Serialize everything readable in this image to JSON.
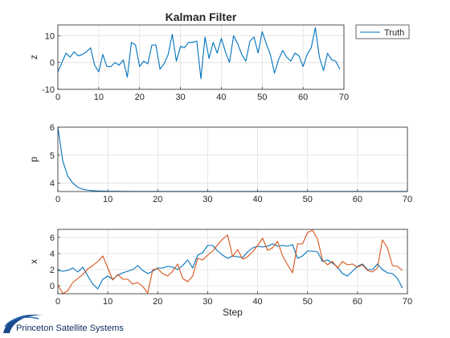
{
  "chart_data": [
    {
      "type": "line",
      "title": "Kalman Filter",
      "xlabel": "",
      "ylabel": "z",
      "xlim": [
        0,
        70
      ],
      "ylim": [
        -10,
        14
      ],
      "xticks": [
        "0",
        "10",
        "20",
        "30",
        "40",
        "50",
        "60",
        "70"
      ],
      "yticks": [
        "-10",
        "0",
        "10"
      ],
      "grid": true,
      "legend": "top-right-outside",
      "series": [
        {
          "name": "Truth",
          "color": "#0072BD",
          "x": [
            0,
            1,
            2,
            3,
            4,
            5,
            6,
            7,
            8,
            9,
            10,
            11,
            12,
            13,
            14,
            15,
            16,
            17,
            18,
            19,
            20,
            21,
            22,
            23,
            24,
            25,
            26,
            27,
            28,
            29,
            30,
            31,
            32,
            33,
            34,
            35,
            36,
            37,
            38,
            39,
            40,
            41,
            42,
            43,
            44,
            45,
            46,
            47,
            48,
            49,
            50,
            51,
            52,
            53,
            54,
            55,
            56,
            57,
            58,
            59,
            60,
            61,
            62,
            63,
            64,
            65,
            66,
            67,
            68,
            69
          ],
          "y": [
            -3.5,
            0,
            3.5,
            2,
            4,
            2.5,
            3,
            4,
            5.5,
            -1,
            -3.5,
            3,
            -1.5,
            -1.5,
            0,
            -1,
            1,
            -5.5,
            7.5,
            6.5,
            -1.5,
            0.5,
            -0.5,
            6.5,
            6.5,
            -2.5,
            -0.5,
            3,
            10.5,
            0.5,
            6,
            5.5,
            7.5,
            7.5,
            8,
            -6,
            9.5,
            1.5,
            7.5,
            3.5,
            9,
            4,
            0,
            10,
            7,
            3,
            0.5,
            8,
            9.5,
            3.5,
            11.5,
            7,
            3,
            -4,
            1,
            4.5,
            2,
            0.5,
            3.5,
            2.5,
            -1.5,
            3,
            5.5,
            13,
            2,
            -3,
            3.5,
            1,
            0.5,
            -2.5
          ]
        }
      ]
    },
    {
      "type": "line",
      "title": "",
      "xlabel": "",
      "ylabel": "p",
      "xlim": [
        0,
        70
      ],
      "ylim": [
        3.7,
        6
      ],
      "xticks": [
        "0",
        "10",
        "20",
        "30",
        "40",
        "50",
        "60",
        "70"
      ],
      "yticks": [
        "4",
        "5",
        "6"
      ],
      "grid": true,
      "series": [
        {
          "color": "#0072BD",
          "x": [
            0,
            1,
            2,
            3,
            4,
            5,
            6,
            7,
            8,
            9,
            10,
            12,
            15,
            20,
            30,
            40,
            50,
            60,
            70
          ],
          "y": [
            6,
            4.78,
            4.25,
            4.0,
            3.85,
            3.78,
            3.75,
            3.73,
            3.72,
            3.715,
            3.71,
            3.705,
            3.703,
            3.702,
            3.702,
            3.702,
            3.702,
            3.702,
            3.702
          ]
        }
      ]
    },
    {
      "type": "line",
      "title": "",
      "xlabel": "Step",
      "ylabel": "x",
      "xlim": [
        0,
        70
      ],
      "ylim": [
        -1,
        7
      ],
      "xticks": [
        "0",
        "10",
        "20",
        "30",
        "40",
        "50",
        "60",
        "70"
      ],
      "yticks": [
        "0",
        "2",
        "4",
        "6"
      ],
      "grid": true,
      "series": [
        {
          "color": "#0072BD",
          "x": [
            0,
            1,
            2,
            3,
            4,
            5,
            6,
            7,
            8,
            9,
            10,
            11,
            12,
            13,
            14,
            15,
            16,
            17,
            18,
            19,
            20,
            21,
            22,
            23,
            24,
            25,
            26,
            27,
            28,
            29,
            30,
            31,
            32,
            33,
            34,
            35,
            36,
            37,
            38,
            39,
            40,
            41,
            42,
            43,
            44,
            45,
            46,
            47,
            48,
            49,
            50,
            51,
            52,
            53,
            54,
            55,
            56,
            57,
            58,
            59,
            60,
            61,
            62,
            63,
            64,
            65,
            66,
            67,
            68,
            69
          ],
          "y": [
            1.9,
            1.8,
            1.9,
            2.2,
            1.7,
            2.3,
            1.2,
            0.2,
            -0.4,
            0.8,
            1.2,
            0.8,
            1.3,
            1.6,
            1.8,
            2.0,
            2.5,
            1.9,
            1.5,
            1.8,
            2.2,
            2.2,
            2.4,
            2.3,
            2.0,
            2.5,
            3.2,
            2.2,
            3.8,
            4.1,
            5.0,
            5.0,
            4.3,
            3.8,
            3.4,
            3.7,
            3.6,
            3.5,
            4.2,
            4.7,
            4.9,
            4.8,
            4.9,
            5.2,
            4.9,
            5.0,
            4.9,
            5.1,
            3.4,
            3.7,
            4.3,
            4.3,
            4.2,
            3.0,
            3.2,
            2.8,
            2.3,
            1.5,
            1.2,
            1.8,
            2.4,
            2.7,
            2.0,
            2.0,
            2.7,
            2.0,
            1.6,
            1.5,
            0.9,
            -0.3
          ]
        },
        {
          "color": "#D95319",
          "x": [
            0,
            1,
            2,
            3,
            4,
            5,
            6,
            7,
            8,
            9,
            10,
            11,
            12,
            13,
            14,
            15,
            16,
            17,
            18,
            19,
            20,
            21,
            22,
            23,
            24,
            25,
            26,
            27,
            28,
            29,
            30,
            31,
            32,
            33,
            34,
            35,
            36,
            37,
            38,
            39,
            40,
            41,
            42,
            43,
            44,
            45,
            46,
            47,
            48,
            49,
            50,
            51,
            52,
            53,
            54,
            55,
            56,
            57,
            58,
            59,
            60,
            61,
            62,
            63,
            64,
            65,
            66,
            67,
            68,
            69
          ],
          "y": [
            0.1,
            -1.0,
            -0.6,
            0.4,
            0.9,
            1.4,
            2.1,
            2.5,
            3.0,
            3.7,
            2.2,
            0.7,
            1.4,
            0.8,
            0.8,
            0.2,
            0.4,
            -0.1,
            -0.9,
            2.0,
            2.1,
            1.5,
            1.2,
            1.8,
            2.7,
            0.9,
            0.5,
            1.2,
            3.4,
            3.2,
            3.8,
            4.3,
            5.1,
            5.8,
            6.3,
            3.6,
            4.5,
            3.3,
            3.6,
            4.2,
            5.0,
            5.9,
            4.4,
            4.7,
            5.5,
            3.7,
            2.6,
            1.6,
            5.2,
            5.2,
            6.6,
            6.9,
            5.8,
            3.2,
            2.6,
            3.0,
            2.2,
            3.0,
            2.6,
            2.7,
            2.3,
            2.6,
            1.9,
            1.7,
            2.2,
            5.7,
            4.7,
            2.5,
            2.4,
            1.9
          ]
        }
      ]
    }
  ],
  "logo": {
    "text": "Princeton Satellite Systems"
  }
}
